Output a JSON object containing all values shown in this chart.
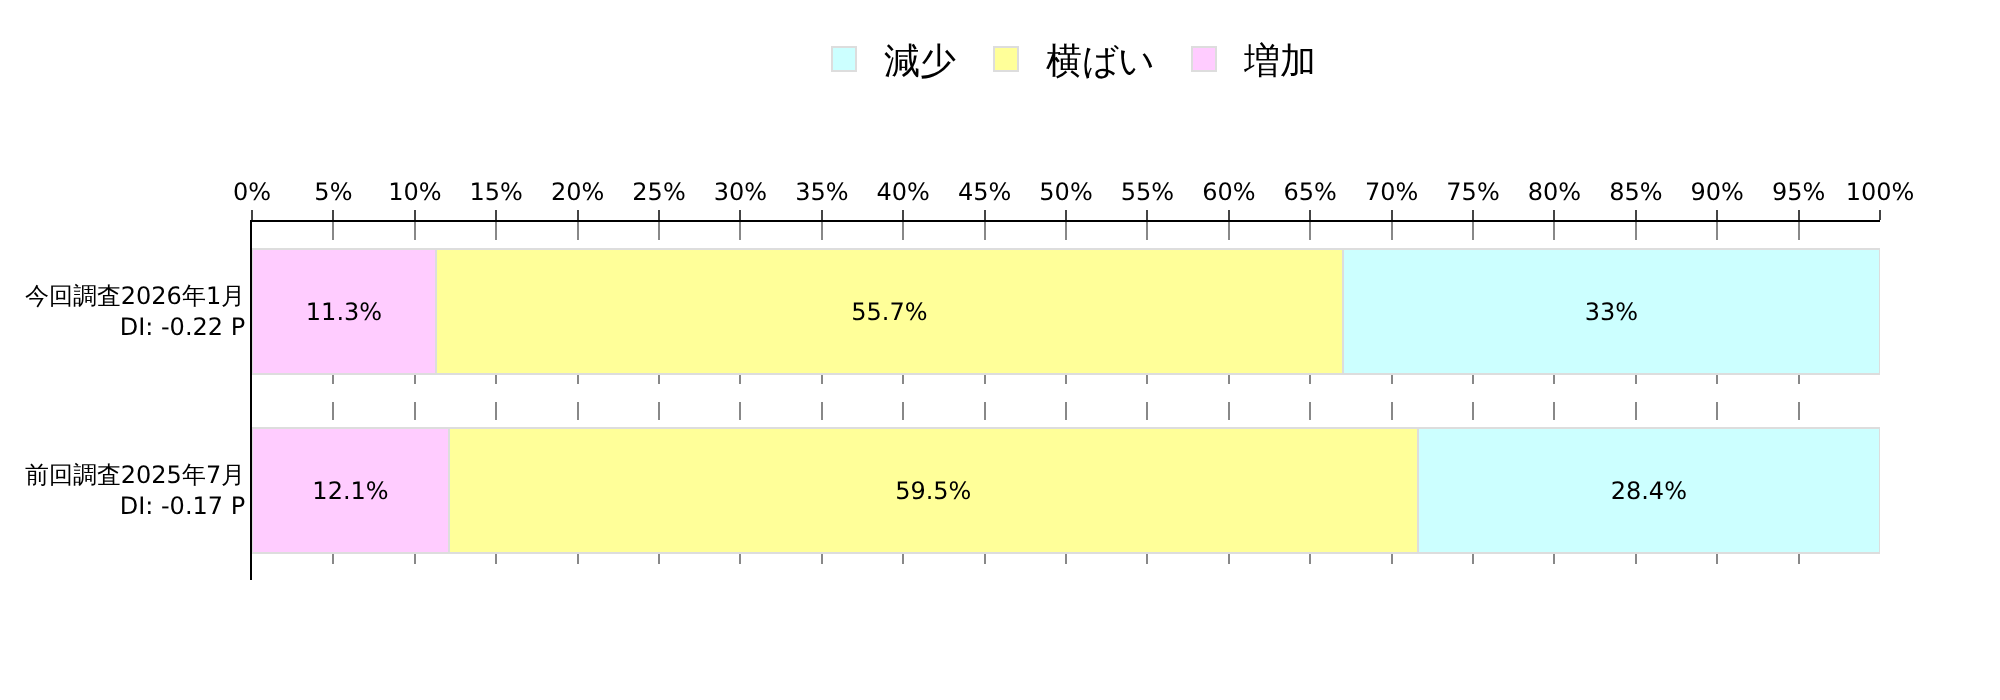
{
  "chart_data": {
    "type": "bar",
    "orientation": "horizontal",
    "stacked": true,
    "categories": [
      "今回調査2026年1月\nDI: -0.22 P",
      "前回調査2025年7月\nDI: -0.17 P"
    ],
    "series": [
      {
        "name": "増加",
        "color": "#ffccff",
        "values": [
          11.3,
          12.1
        ],
        "value_labels": [
          "11.3%",
          "12.1%"
        ]
      },
      {
        "name": "横ばい",
        "color": "#ffff99",
        "values": [
          55.7,
          59.5
        ],
        "value_labels": [
          "55.7%",
          "59.5%"
        ]
      },
      {
        "name": "減少",
        "color": "#ccffff",
        "values": [
          33,
          28.4
        ],
        "value_labels": [
          "33%",
          "28.4%"
        ]
      }
    ],
    "xlim": [
      0,
      100
    ],
    "xticks": [
      {
        "value": 0,
        "label": "0%"
      },
      {
        "value": 5,
        "label": "5%"
      },
      {
        "value": 10,
        "label": "10%"
      },
      {
        "value": 15,
        "label": "15%"
      },
      {
        "value": 20,
        "label": "20%"
      },
      {
        "value": 25,
        "label": "25%"
      },
      {
        "value": 30,
        "label": "30%"
      },
      {
        "value": 35,
        "label": "35%"
      },
      {
        "value": 40,
        "label": "40%"
      },
      {
        "value": 45,
        "label": "45%"
      },
      {
        "value": 50,
        "label": "50%"
      },
      {
        "value": 55,
        "label": "55%"
      },
      {
        "value": 60,
        "label": "60%"
      },
      {
        "value": 65,
        "label": "65%"
      },
      {
        "value": 70,
        "label": "70%"
      },
      {
        "value": 75,
        "label": "75%"
      },
      {
        "value": 80,
        "label": "80%"
      },
      {
        "value": 85,
        "label": "85%"
      },
      {
        "value": 90,
        "label": "90%"
      },
      {
        "value": 95,
        "label": "95%"
      },
      {
        "value": 100,
        "label": "100%"
      }
    ],
    "grid": "x",
    "legend": "top"
  }
}
